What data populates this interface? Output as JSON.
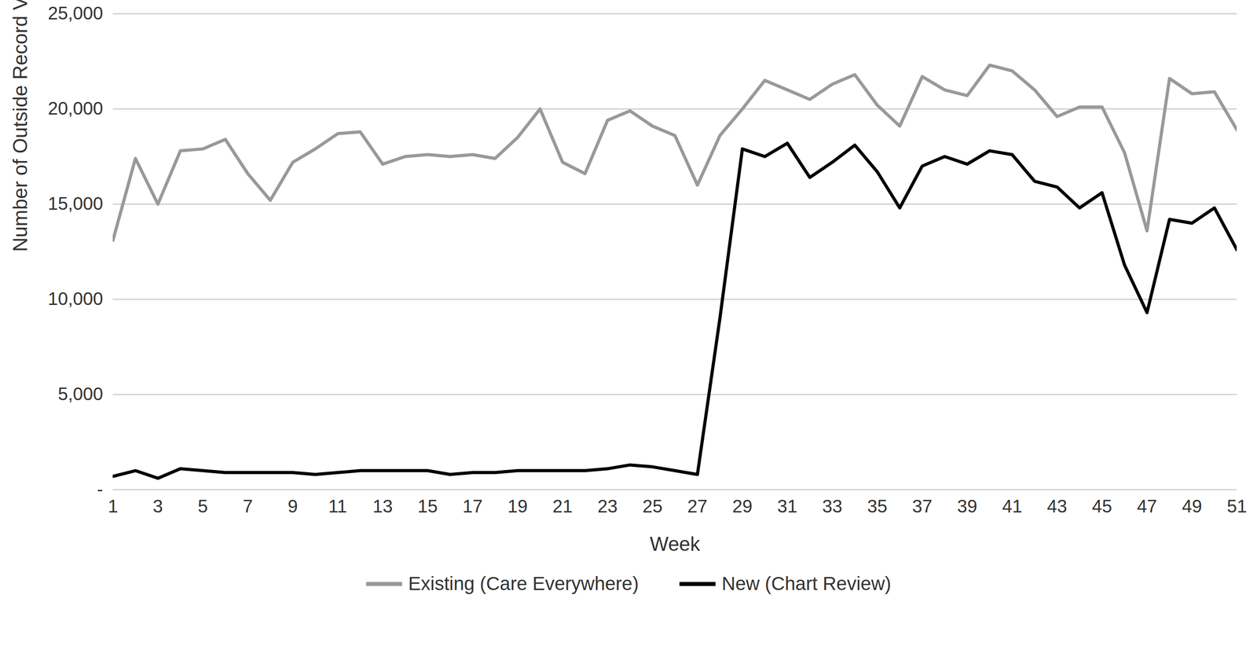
{
  "chart_data": {
    "type": "line",
    "x_label": "Week",
    "y_label": "Number of Outside Record View Events",
    "x": [
      1,
      2,
      3,
      4,
      5,
      6,
      7,
      8,
      9,
      10,
      11,
      12,
      13,
      14,
      15,
      16,
      17,
      18,
      19,
      20,
      21,
      22,
      23,
      24,
      25,
      26,
      27,
      28,
      29,
      30,
      31,
      32,
      33,
      34,
      35,
      36,
      37,
      38,
      39,
      40,
      41,
      42,
      43,
      44,
      45,
      46,
      47,
      48,
      49,
      50,
      51
    ],
    "series": [
      {
        "name": "Existing (Care Everywhere)",
        "color": "#999999",
        "values": [
          13100,
          17400,
          15000,
          17800,
          17900,
          18400,
          16600,
          15200,
          17200,
          17900,
          18700,
          18800,
          17100,
          17500,
          17600,
          17500,
          17600,
          17400,
          18500,
          20000,
          17200,
          16600,
          19400,
          19900,
          19100,
          18600,
          16000,
          18600,
          20000,
          21500,
          21000,
          20500,
          21300,
          21800,
          20200,
          19100,
          21700,
          21000,
          20700,
          22300,
          22000,
          21000,
          19600,
          20100,
          20100,
          17700,
          13600,
          21600,
          20800,
          20900,
          18900
        ]
      },
      {
        "name": "New (Chart Review)",
        "color": "#000000",
        "values": [
          700,
          1000,
          600,
          1100,
          1000,
          900,
          900,
          900,
          900,
          800,
          900,
          1000,
          1000,
          1000,
          1000,
          800,
          900,
          900,
          1000,
          1000,
          1000,
          1000,
          1100,
          1300,
          1200,
          1000,
          800,
          9000,
          17900,
          17500,
          18200,
          16400,
          17200,
          18100,
          16700,
          14800,
          17000,
          17500,
          17100,
          17800,
          17600,
          16200,
          15900,
          14800,
          15600,
          11800,
          9300,
          14200,
          14000,
          14800,
          12600
        ]
      }
    ],
    "xlim": [
      1,
      51
    ],
    "xticks": [
      1,
      3,
      5,
      7,
      9,
      11,
      13,
      15,
      17,
      19,
      21,
      23,
      25,
      27,
      29,
      31,
      33,
      35,
      37,
      39,
      41,
      43,
      45,
      47,
      49,
      51
    ],
    "ylim": [
      0,
      25000
    ],
    "yticks": [
      {
        "value": 0,
        "label": "-"
      },
      {
        "value": 5000,
        "label": "5,000"
      },
      {
        "value": 10000,
        "label": "10,000"
      },
      {
        "value": 15000,
        "label": "15,000"
      },
      {
        "value": 20000,
        "label": "20,000"
      },
      {
        "value": 25000,
        "label": "25,000"
      }
    ],
    "grid": true,
    "legend": "bottom"
  }
}
